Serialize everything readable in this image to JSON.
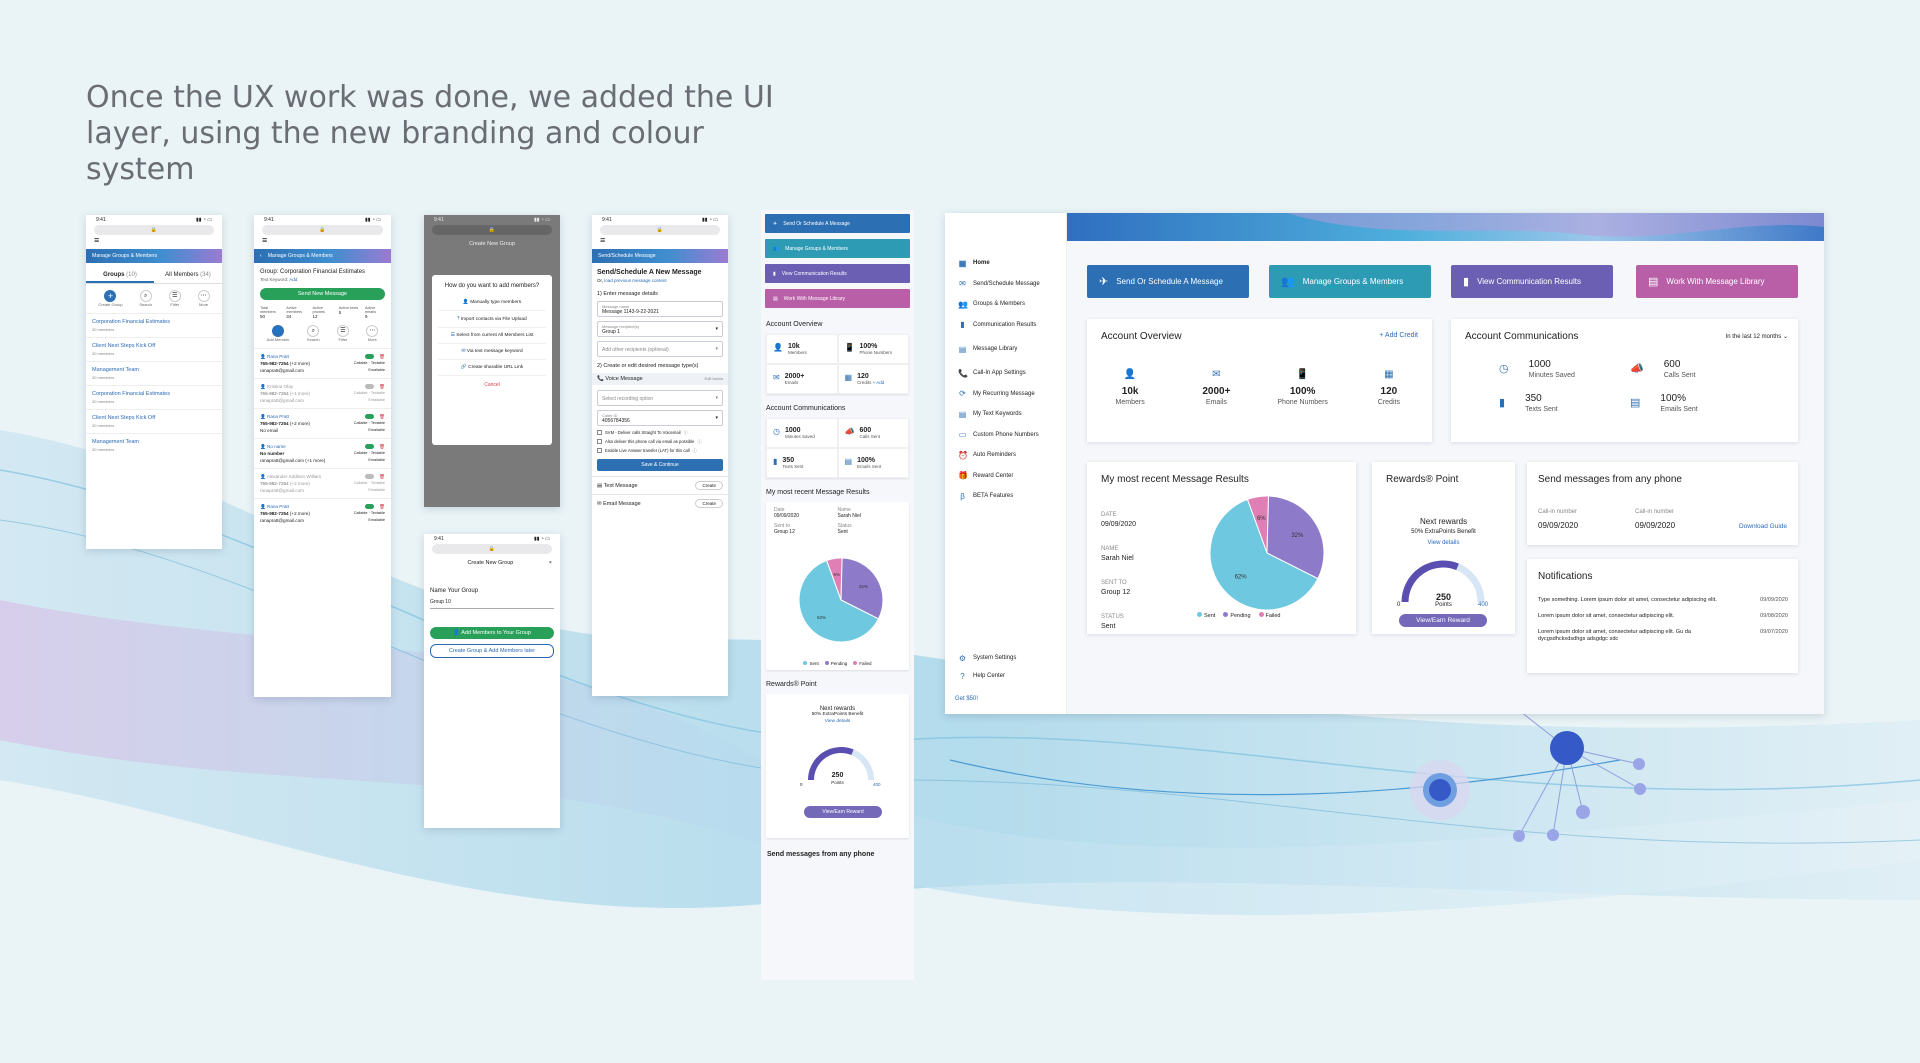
{
  "headline": "Once the UX work was done, we added the UI layer, using the new branding and colour system",
  "colors": {
    "blue": "#2d6fb3",
    "teal": "#2e9bb5",
    "purple": "#6b5fb3",
    "pink": "#b85fa8",
    "green": "#29a05a",
    "sent": "#6ec8e0",
    "pending": "#8d7bc9",
    "failed": "#e07fb5"
  },
  "phone_time": "9:41",
  "phone1": {
    "title": "Manage Groups & Members",
    "tab_groups": "Groups",
    "tab_groups_count": "(10)",
    "tab_members": "All Members",
    "tab_members_count": "(34)",
    "actions": [
      "Create Group",
      "Search",
      "Filter",
      "More"
    ],
    "groups": [
      {
        "name": "Corporation Financial Estimates",
        "meta": "30 members"
      },
      {
        "name": "Client Next Steps Kick Off",
        "meta": "30 members"
      },
      {
        "name": "Management Team",
        "meta": "30 members"
      },
      {
        "name": "Corporation Financial Estimates",
        "meta": "30 members"
      },
      {
        "name": "Client Next Steps Kick Off",
        "meta": "30 members"
      },
      {
        "name": "Management Team",
        "meta": "30 members"
      }
    ]
  },
  "phone2": {
    "title": "Manage Groups & Members",
    "group": "Group: Corporation Financial Estimates",
    "keyword": "Text Keyword:",
    "keyword_link": "Add",
    "send_btn": "Send New Message",
    "stats": [
      {
        "label": "Total members",
        "value": "50"
      },
      {
        "label": "Active members",
        "value": "34"
      },
      {
        "label": "Active phones",
        "value": "12"
      },
      {
        "label": "Active texts",
        "value": "5"
      },
      {
        "label": "Active emails",
        "value": "9"
      }
    ],
    "actions": [
      "Add Member",
      "Search",
      "Filter",
      "More"
    ],
    "members": [
      {
        "name": "Rana Pratt",
        "phone": "765-982-7254",
        "more": "(+2 more)",
        "email": "ranapratt@gmail.com",
        "call": "Callable",
        "text": "Textable",
        "mail": "Emailable",
        "on": true
      },
      {
        "name": "Kristina Olay",
        "phone": "765-982-7254",
        "more": "(+1 more)",
        "email": "ranapratt@gmail.com",
        "call": "Callable",
        "text": "Textable",
        "mail": "Emailable",
        "on": false
      },
      {
        "name": "Rana Pratt",
        "phone": "765-982-7254",
        "more": "(+2 more)",
        "email": "No email",
        "call": "Callable",
        "text": "Textable",
        "mail": "Emailable",
        "on": true
      },
      {
        "name": "No name",
        "phone": "No number",
        "more": "",
        "email": "ranapratt@gmail.com (+1 more)",
        "call": "Callable",
        "text": "Textable",
        "mail": "Emailable",
        "on": true
      },
      {
        "name": "Alexander Addison William",
        "phone": "765-982-7254",
        "more": "(+2 more)",
        "email": "ranapratt@gmail.com",
        "call": "Callable",
        "text": "Textable",
        "mail": "Emailable",
        "on": false
      },
      {
        "name": "Rana Pratt",
        "phone": "765-982-7254",
        "more": "(+2 more)",
        "email": "ranapratt@gmail.com",
        "call": "Callable",
        "text": "Textable",
        "mail": "Emailable",
        "on": true
      }
    ]
  },
  "phone3": {
    "title": "Create New Group",
    "question": "How do you want to add members?",
    "options": [
      "Manually type members",
      "Import contacts via File Upload",
      "Select from current All Members List",
      "Via text message keyword",
      "Create sharable URL Link"
    ],
    "cancel": "Cancel"
  },
  "phone4": {
    "title": "Create New Group",
    "name_label": "Name Your Group",
    "name_value": "Group 10",
    "btn_add": "Add Members to Your Group",
    "btn_later": "Create Group & Add Members later"
  },
  "phone5": {
    "title": "Send/Schedule Message",
    "heading": "Send/Schedule A New Message",
    "sub_prefix": "Or,",
    "sub_link": "load previous message content",
    "step1": "1) Enter message details",
    "msg_name_cap": "Message name",
    "msg_name": "Message 1143-9-22-2021",
    "recipients_cap": "Message recipient(s)",
    "recipients": "Group 1",
    "other": "Add other recipients (optional)",
    "step2": "2) Create or edit desired message type(s)",
    "voice": "Voice Message",
    "voice_edit": "Edit below",
    "recording": "Select recording option",
    "caller_cap": "Caller ID",
    "caller": "4056784356",
    "checks": [
      "SVM - Deliver calls Straight To Voicemail",
      "Also deliver this phone call via email as possible",
      "Enable Live Answer transfer (LAT) for this call"
    ],
    "save": "Save & Continue",
    "text_msg": "Text Message",
    "email_msg": "Email Message",
    "create": "Create"
  },
  "mobile_dash": {
    "buttons": [
      "Send Or Schedule A Message",
      "Manage Groups & Members",
      "View Communication Results",
      "Work With Message Library"
    ],
    "overview_title": "Account Overview",
    "overview": [
      {
        "value": "10k",
        "label": "Members"
      },
      {
        "value": "100%",
        "label": "Phone Numbers"
      },
      {
        "value": "2000+",
        "label": "Emails"
      },
      {
        "value": "120",
        "label": "Credits",
        "link": "+ Add"
      }
    ],
    "comm_title": "Account Communications",
    "comm": [
      {
        "value": "1000",
        "label": "Minutes Saved"
      },
      {
        "value": "600",
        "label": "Calls Sent"
      },
      {
        "value": "350",
        "label": "Texts Sent"
      },
      {
        "value": "100%",
        "label": "Emails Sent"
      }
    ],
    "results_title": "My most recent Message Results",
    "date_label": "Date",
    "date": "09/09/2020",
    "name_label": "Name",
    "name": "Sarah Niel",
    "sentto_label": "Sent to",
    "sentto": "Group 12",
    "status_label": "Status",
    "status": "Sent",
    "rewards_title": "Rewards® Point",
    "next": "Next rewards",
    "benefit": "50% ExtraPoints Benefit",
    "view": "View details",
    "points": "250",
    "points_label": "Points",
    "gauge_min": "0",
    "gauge_max": "400",
    "earn": "View/Earn Reward",
    "send_any": "Send messages from any phone"
  },
  "desktop": {
    "nav": [
      "Home",
      "Send/Schedule Message",
      "Groups & Members",
      "Communication Results",
      "Message Library",
      "Call-In App Settings",
      "My Recurring Message",
      "My Text Keywords",
      "Custom Phone Numbers",
      "Auto Reminders",
      "Reward Center",
      "BETA Features"
    ],
    "nav_icons": [
      "home-icon",
      "message-icon",
      "group-icon",
      "chart-icon",
      "library-icon",
      "phone-icon",
      "recurring-icon",
      "keyword-icon",
      "number-icon",
      "reminder-icon",
      "reward-icon",
      "beta-icon"
    ],
    "bottom_nav": [
      "System Settings",
      "Help Center"
    ],
    "get": "Get $50!",
    "buttons": [
      "Send Or Schedule A Message",
      "Manage Groups & Members",
      "View Communication Results",
      "Work With Message Library"
    ],
    "overview_title": "Account Overview",
    "add_credit": "+ Add Credit",
    "overview": [
      {
        "value": "10k",
        "label": "Members"
      },
      {
        "value": "2000+",
        "label": "Emails"
      },
      {
        "value": "100%",
        "label": "Phone Numbers"
      },
      {
        "value": "120",
        "label": "Credits"
      }
    ],
    "comm_title": "Account Communications",
    "period": "In the last 12 months",
    "comm": [
      {
        "value": "1000",
        "label": "Minutes Saved"
      },
      {
        "value": "600",
        "label": "Calls Sent"
      },
      {
        "value": "350",
        "label": "Texts Sent"
      },
      {
        "value": "100%",
        "label": "Emails Sent"
      }
    ],
    "results_title": "My most recent Message Results",
    "date_label": "DATE",
    "date": "09/09/2020",
    "name_label": "NAME",
    "name": "Sarah Niel",
    "sentto_label": "SENT TO",
    "sentto": "Group 12",
    "status_label": "STATUS",
    "status": "Sent",
    "rewards_title": "Rewards® Point",
    "next": "Next rewards",
    "benefit": "50% ExtraPoints Benefit",
    "view": "View details",
    "points": "250",
    "points_label": "Points",
    "gauge_min": "0",
    "gauge_max": "400",
    "earn": "View/Earn Reward",
    "send_any": "Send messages from any phone",
    "callin_label": "Call-in number",
    "callin1": "09/09/2020",
    "callin2": "09/09/2020",
    "guide": "Download Guide",
    "notif_title": "Notifications",
    "notifications": [
      {
        "text": "Type something. Lorem ipsum dolor sit amet, consectetur adipiscing elit.",
        "date": "09/09/2020"
      },
      {
        "text": "Lorem ipsum dolor sit amet, consectetur adipiscing elit.",
        "date": "09/08/2020"
      },
      {
        "text": "Lorem ipsum dolor sit amet, consectetur adipiscing elit. Gu da dycgsdhckxdsdhgs adsgdgc sdc",
        "date": "09/07/2020"
      }
    ]
  },
  "chart_data": {
    "type": "pie",
    "categories": [
      "Sent",
      "Pending",
      "Failed"
    ],
    "values": [
      62,
      32,
      6
    ],
    "labels": [
      "62%",
      "32%",
      "6%"
    ],
    "colors": [
      "#6ec8e0",
      "#8d7bc9",
      "#e07fb5"
    ]
  }
}
